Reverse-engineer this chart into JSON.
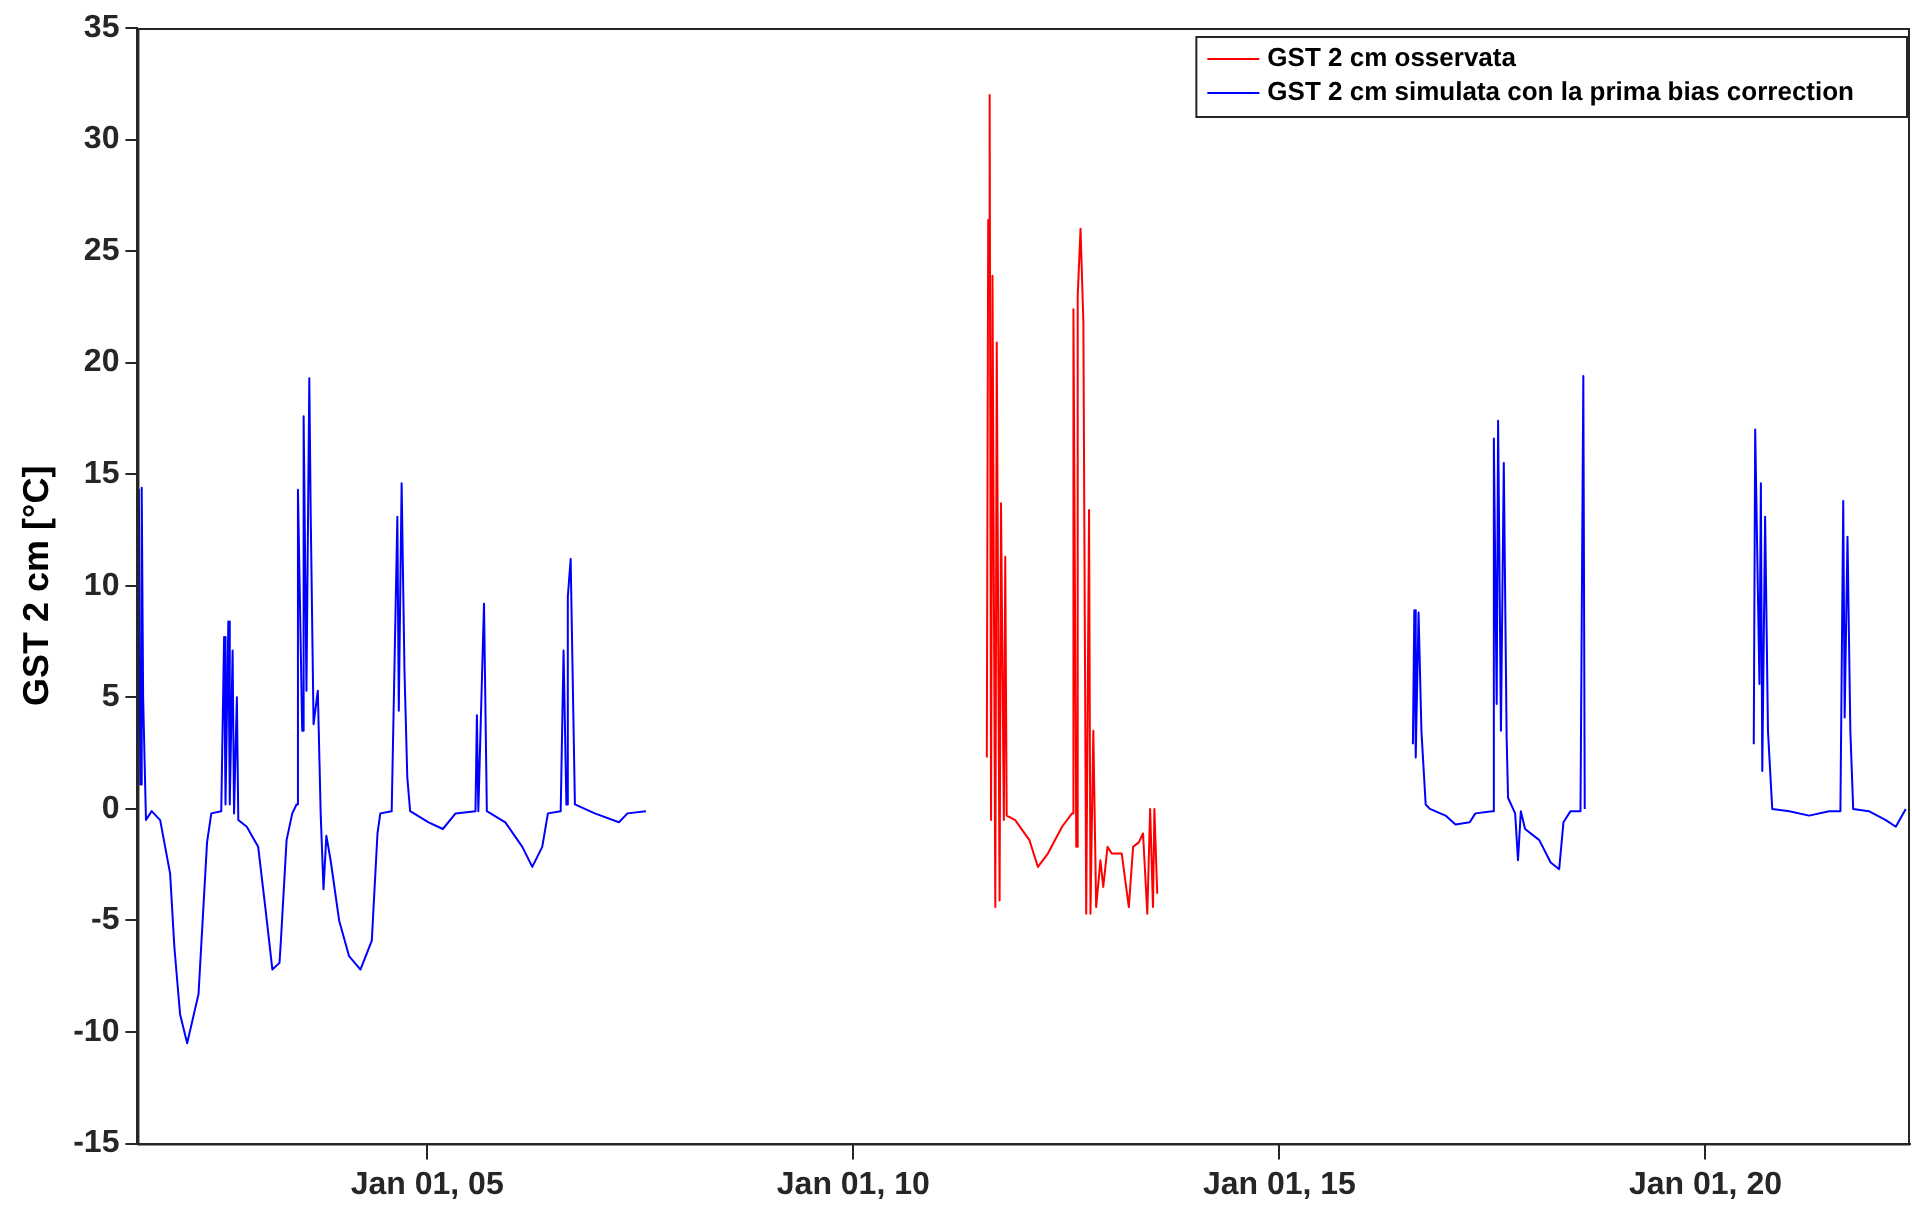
{
  "chart_data": {
    "type": "line",
    "ylabel": "GST 2 cm [°C]",
    "xlim": [
      "--01-01T01:36",
      "--01-01T22:24"
    ],
    "xticks": [
      {
        "value": "--01-01T05:00",
        "label": "Jan 01, 05"
      },
      {
        "value": "--01-01T10:00",
        "label": "Jan 01, 10"
      },
      {
        "value": "--01-01T15:00",
        "label": "Jan 01, 15"
      },
      {
        "value": "--01-01T20:00",
        "label": "Jan 01, 20"
      }
    ],
    "ylim": [
      -15,
      35
    ],
    "yticks": [
      -15,
      -10,
      -5,
      0,
      5,
      10,
      15,
      20,
      25,
      30,
      35
    ],
    "grid": false,
    "legend": "top right",
    "marker": "none",
    "line_style": "solid",
    "series": [
      {
        "name": "GST 2 cm osservata",
        "color": "#ff0000",
        "x": [
          "--01-01T11:34",
          "--01-01T11:35",
          "--01-01T11:36",
          "--01-01T11:37",
          "--01-01T11:38",
          "--01-01T11:40",
          "--01-01T11:41",
          "--01-01T11:43",
          "--01-01T11:44",
          "--01-01T11:46",
          "--01-01T11:47",
          "--01-01T11:48",
          "--01-01T11:54",
          "--01-01T12:04",
          "--01-01T12:10",
          "--01-01T12:17",
          "--01-01T12:27",
          "--01-01T12:34",
          "--01-01T12:35",
          "--01-01T12:37",
          "--01-01T12:38",
          "--01-01T12:40",
          "--01-01T12:42",
          "--01-01T12:44",
          "--01-01T12:46",
          "--01-01T12:47",
          "--01-01T12:49",
          "--01-01T12:51",
          "--01-01T12:54",
          "--01-01T12:56",
          "--01-01T12:59",
          "--01-01T13:02",
          "--01-01T13:09",
          "--01-01T13:14",
          "--01-01T13:17",
          "--01-01T13:21",
          "--01-01T13:24",
          "--01-01T13:27",
          "--01-01T13:29",
          "--01-01T13:31",
          "--01-01T13:32",
          "--01-01T13:34"
        ],
        "values": [
          2.3,
          26.4,
          32,
          -0.5,
          23.9,
          -4.4,
          20.9,
          -4.1,
          13.7,
          -0.5,
          11.3,
          -0.3,
          -0.5,
          -1.4,
          -2.6,
          -2,
          -0.8,
          -0.2,
          22.4,
          -1.7,
          23,
          26,
          21.8,
          -4.7,
          13.4,
          -4.7,
          3.5,
          -4.4,
          -2.3,
          -3.5,
          -1.7,
          -2,
          -2,
          -4.4,
          -1.7,
          -1.5,
          -1.1,
          -4.7,
          0,
          -4.4,
          0,
          -3.8
        ]
      },
      {
        "name": "GST 2 cm simulata con la prima bias correction",
        "color": "#0000ff",
        "x": [
          "--01-01T01:36",
          "--01-01T01:37",
          "--01-01T01:38",
          "--01-01T01:39",
          "--01-01T01:40",
          "--01-01T01:42",
          "--01-01T01:46",
          "--01-01T01:52",
          "--01-01T01:59",
          "--01-01T02:02",
          "--01-01T02:06",
          "--01-01T02:11",
          "--01-01T02:19",
          "--01-01T02:25",
          "--01-01T02:28",
          "--01-01T02:35",
          "--01-01T02:37",
          "--01-01T02:38",
          "--01-01T02:40",
          "--01-01T02:41",
          "--01-01T02:43",
          "--01-01T02:44",
          "--01-01T02:46",
          "--01-01T02:47",
          "--01-01T02:53",
          "--01-01T03:01",
          "--01-01T03:06",
          "--01-01T03:11",
          "--01-01T03:16",
          "--01-01T03:17",
          "--01-01T03:21",
          "--01-01T03:25",
          "--01-01T03:28",
          "--01-01T03:29",
          "--01-01T03:32",
          "--01-01T03:33",
          "--01-01T03:35",
          "--01-01T03:37",
          "--01-01T03:38",
          "--01-01T03:40",
          "--01-01T03:43",
          "--01-01T03:45",
          "--01-01T03:47",
          "--01-01T03:49",
          "--01-01T03:52",
          "--01-01T03:58",
          "--01-01T04:05",
          "--01-01T04:13",
          "--01-01T04:21",
          "--01-01T04:25",
          "--01-01T04:27",
          "--01-01T04:35",
          "--01-01T04:37",
          "--01-01T04:39",
          "--01-01T04:40",
          "--01-01T04:42",
          "--01-01T04:44",
          "--01-01T04:46",
          "--01-01T04:48",
          "--01-01T05:01",
          "--01-01T05:11",
          "--01-01T05:20",
          "--01-01T05:34",
          "--01-01T05:35",
          "--01-01T05:36",
          "--01-01T05:40",
          "--01-01T05:42",
          "--01-01T05:55",
          "--01-01T06:07",
          "--01-01T06:14",
          "--01-01T06:21",
          "--01-01T06:25",
          "--01-01T06:34",
          "--01-01T06:36",
          "--01-01T06:38",
          "--01-01T06:39",
          "--01-01T06:41",
          "--01-01T06:44",
          "--01-01T06:58",
          "--01-01T07:15",
          "--01-01T07:21",
          "--01-01T07:34",
          "--01-01T12:00",
          "--01-01T16:34",
          "--01-01T16:35",
          "--01-01T16:36",
          "--01-01T16:38",
          "--01-01T16:40",
          "--01-01T16:43",
          "--01-01T16:46",
          "--01-01T16:57",
          "--01-01T17:04",
          "--01-01T17:14",
          "--01-01T17:18",
          "--01-01T17:30",
          "--01-01T17:31",
          "--01-01T17:33",
          "--01-01T17:34",
          "--01-01T17:36",
          "--01-01T17:38",
          "--01-01T17:40",
          "--01-01T17:41",
          "--01-01T17:46",
          "--01-01T17:48",
          "--01-01T17:50",
          "--01-01T17:53",
          "--01-01T18:03",
          "--01-01T18:11",
          "--01-01T18:17",
          "--01-01T18:20",
          "--01-01T18:25",
          "--01-01T18:32",
          "--01-01T18:34",
          "--01-01T18:35",
          "--01-01T19:30",
          "--01-01T20:34",
          "--01-01T20:35",
          "--01-01T20:38",
          "--01-01T20:39",
          "--01-01T20:40",
          "--01-01T20:42",
          "--01-01T20:44",
          "--01-01T20:47",
          "--01-01T20:59",
          "--01-01T21:13",
          "--01-01T21:27",
          "--01-01T21:35",
          "--01-01T21:37",
          "--01-01T21:38",
          "--01-01T21:40",
          "--01-01T21:42",
          "--01-01T21:44",
          "--01-01T21:55",
          "--01-01T22:07",
          "--01-01T22:14",
          "--01-01T22:21"
        ],
        "values": [
          2.9,
          14.3,
          1.1,
          14.4,
          5,
          -0.5,
          -0.1,
          -0.5,
          -2.9,
          -6.2,
          -9.2,
          -10.5,
          -8.3,
          -1.5,
          -0.2,
          -0.1,
          7.7,
          0.2,
          8.4,
          0.2,
          7.1,
          -0.2,
          5,
          -0.5,
          -0.8,
          -1.7,
          -4.4,
          -7.2,
          -6.9,
          -5.9,
          -1.4,
          -0.2,
          0.2,
          14.3,
          3.5,
          17.6,
          5.3,
          19.3,
          13.1,
          3.8,
          5.3,
          -0.2,
          -3.6,
          -1.2,
          -2.3,
          -5,
          -6.6,
          -7.2,
          -5.9,
          -1.1,
          -0.2,
          -0.1,
          6.5,
          13.1,
          4.4,
          14.6,
          6.2,
          1.4,
          -0.1,
          -0.6,
          -0.9,
          -0.2,
          -0.1,
          4.2,
          -0.1,
          9.2,
          -0.1,
          -0.6,
          -1.7,
          -2.6,
          -1.7,
          -0.2,
          -0.1,
          7.1,
          0.2,
          9.5,
          11.2,
          0.2,
          -0.2,
          -0.6,
          -0.2,
          -0.1,
          null,
          2.9,
          8.9,
          2.3,
          8.8,
          3.5,
          0.2,
          0,
          -0.3,
          -0.7,
          -0.6,
          -0.2,
          -0.1,
          16.6,
          4.7,
          17.4,
          3.5,
          15.5,
          3.2,
          0.5,
          -0.2,
          -2.3,
          -0.1,
          -0.9,
          -1.4,
          -2.4,
          -2.7,
          -0.6,
          -0.1,
          -0.1,
          19.4,
          0,
          null,
          2.9,
          17,
          5.6,
          14.6,
          1.7,
          13.1,
          3.5,
          0,
          -0.1,
          -0.3,
          -0.1,
          -0.1,
          13.8,
          4.1,
          12.2,
          3.5,
          0,
          -0.1,
          -0.5,
          -0.8,
          0
        ]
      }
    ]
  }
}
